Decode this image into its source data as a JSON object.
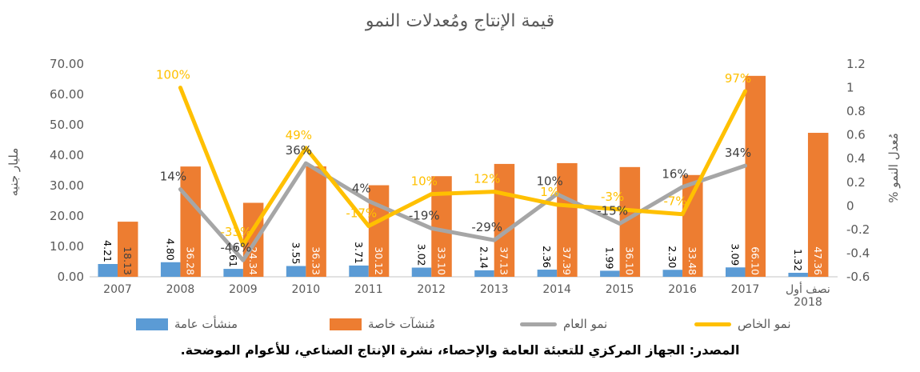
{
  "chart_data": {
    "type": "combo-bar-line",
    "title": "قيمة الإنتاج ومُعدلات النمو",
    "categories": [
      "2007",
      "2008",
      "2009",
      "2010",
      "2011",
      "2012",
      "2013",
      "2014",
      "2015",
      "2016",
      "2017",
      "نصف أول\n2018"
    ],
    "bar_series": [
      {
        "name": "منشأت عامة",
        "color": "#5B9BD5",
        "axis": "left",
        "values": [
          4.21,
          4.8,
          2.61,
          3.55,
          3.71,
          3.02,
          2.14,
          2.36,
          1.99,
          2.3,
          3.09,
          1.32
        ],
        "labels": [
          "4.21",
          "4.80",
          "2.61",
          "3.55",
          "3.71",
          "3.02",
          "2.14",
          "2.36",
          "1.99",
          "2.30",
          "3.09",
          "1.32"
        ],
        "label_color": "#000000",
        "label_color_overrides": {}
      },
      {
        "name": "مُنشآت خاصة",
        "color": "#ED7D31",
        "axis": "left",
        "values": [
          18.13,
          36.28,
          24.34,
          36.33,
          30.12,
          33.1,
          37.13,
          37.39,
          36.1,
          33.48,
          66.1,
          47.36
        ],
        "labels": [
          "18.13",
          "36.28",
          "24.34",
          "36.33",
          "30.12",
          "33.10",
          "37.13",
          "37.39",
          "36.10",
          "33.48",
          "66.10",
          "47.36"
        ],
        "label_color": "#FFFFFF",
        "label_color_overrides": {
          "0": "#3F3F3F"
        }
      }
    ],
    "line_series": [
      {
        "name": "نمو العام",
        "color": "#A6A6A6",
        "axis": "right",
        "start_index": 1,
        "values": [
          0.14,
          -0.46,
          0.36,
          0.04,
          -0.19,
          -0.29,
          0.1,
          -0.15,
          0.16,
          0.34
        ],
        "labels": [
          "14%",
          "-46%",
          "36%",
          "4%",
          "-19%",
          "-29%",
          "10%",
          "-15%",
          "16%",
          "34%"
        ],
        "label_color": "#404040"
      },
      {
        "name": "نمو الخاص",
        "color": "#FFC000",
        "axis": "right",
        "start_index": 1,
        "values": [
          1.0,
          -0.33,
          0.49,
          -0.17,
          0.1,
          0.12,
          0.01,
          -0.03,
          -0.07,
          0.97
        ],
        "labels": [
          "100%",
          "-33%",
          "49%",
          "-17%",
          "10%",
          "12%",
          "1%",
          "-3%",
          "-7%",
          "97%"
        ],
        "label_color": "#FFC000"
      }
    ],
    "left_axis": {
      "title": "مليار جنيه",
      "min": 0,
      "max": 70,
      "ticks": [
        "70.00",
        "60.00",
        "50.00",
        "40.00",
        "30.00",
        "20.00",
        "10.00",
        "0.00"
      ]
    },
    "right_axis": {
      "title": "مُعدل النمو %",
      "min": -0.6,
      "max": 1.2,
      "ticks": [
        "1.2",
        "1",
        "0.8",
        "0.6",
        "0.4",
        "0.2",
        "0",
        "-0.2",
        "-0.4",
        "-0.6"
      ]
    },
    "legend": [
      {
        "label": "منشأت عامة",
        "color": "#5B9BD5",
        "marker": "bar"
      },
      {
        "label": "مُنشآت خاصة",
        "color": "#ED7D31",
        "marker": "bar"
      },
      {
        "label": "نمو العام",
        "color": "#A6A6A6",
        "marker": "line"
      },
      {
        "label": "نمو الخاص",
        "color": "#FFC000",
        "marker": "line"
      }
    ],
    "grid": false,
    "axis_line_color": "#D9D9D9",
    "tick_label_color": "#595959"
  },
  "source_note": "المصدر: الجهاز المركزي للتعبئة العامة والإحصاء، نشرة الإنتاج الصناعي، للأعوام الموضحة."
}
